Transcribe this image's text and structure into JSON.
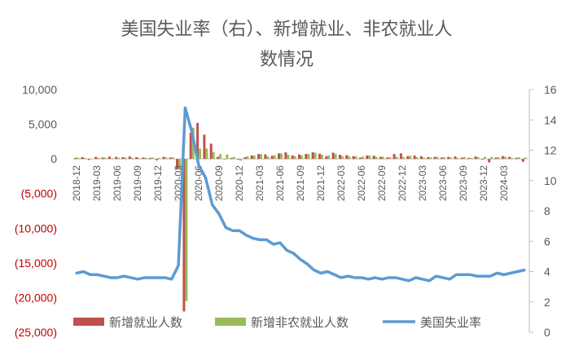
{
  "chart_data": {
    "type": "bar",
    "title": [
      "美国失业率（右）、新增就业、非农就业人",
      "数情况"
    ],
    "left_axis": {
      "ticks": [
        {
          "value": 10000,
          "label": "10,000",
          "color": "#595959"
        },
        {
          "value": 5000,
          "label": "5,000",
          "color": "#595959"
        },
        {
          "value": 0,
          "label": "0",
          "color": "#595959"
        },
        {
          "value": -5000,
          "label": "(5,000)",
          "color": "#c00000"
        },
        {
          "value": -10000,
          "label": "(10,000)",
          "color": "#c00000"
        },
        {
          "value": -15000,
          "label": "(15,000)",
          "color": "#c00000"
        },
        {
          "value": -20000,
          "label": "(20,000)",
          "color": "#c00000"
        },
        {
          "value": -25000,
          "label": "(25,000)",
          "color": "#c00000"
        }
      ],
      "ylim": [
        -25000,
        10000
      ]
    },
    "right_axis": {
      "ticks": [
        "0",
        "2",
        "4",
        "6",
        "8",
        "10",
        "12",
        "14",
        "16"
      ],
      "ylim": [
        0,
        16
      ]
    },
    "x_tick_labels": [
      "2018-12",
      "2019-03",
      "2019-06",
      "2019-09",
      "2019-12",
      "2020-03",
      "2020-06",
      "2020-09",
      "2020-12",
      "2021-03",
      "2021-06",
      "2021-09",
      "2021-12",
      "2022-03",
      "2022-06",
      "2022-09",
      "2022-12",
      "2023-03",
      "2023-06",
      "2023-09",
      "2023-12",
      "2024-03"
    ],
    "months": [
      "2018-12",
      "2019-01",
      "2019-02",
      "2019-03",
      "2019-04",
      "2019-05",
      "2019-06",
      "2019-07",
      "2019-08",
      "2019-09",
      "2019-10",
      "2019-11",
      "2019-12",
      "2020-01",
      "2020-02",
      "2020-03",
      "2020-04",
      "2020-05",
      "2020-06",
      "2020-07",
      "2020-08",
      "2020-09",
      "2020-10",
      "2020-11",
      "2020-12",
      "2021-01",
      "2021-02",
      "2021-03",
      "2021-04",
      "2021-05",
      "2021-06",
      "2021-07",
      "2021-08",
      "2021-09",
      "2021-10",
      "2021-11",
      "2021-12",
      "2022-01",
      "2022-02",
      "2022-03",
      "2022-04",
      "2022-05",
      "2022-06",
      "2022-07",
      "2022-08",
      "2022-09",
      "2022-10",
      "2022-11",
      "2022-12",
      "2023-01",
      "2023-02",
      "2023-03",
      "2023-04",
      "2023-05",
      "2023-06",
      "2023-07",
      "2023-08",
      "2023-09",
      "2023-10",
      "2023-11",
      "2023-12",
      "2024-01",
      "2024-02",
      "2024-03",
      "2024-04",
      "2024-05",
      "2024-06"
    ],
    "series": [
      {
        "name": "新增就业人数",
        "color": "#c0504d",
        "axis": "left",
        "values": [
          150,
          250,
          -150,
          300,
          200,
          350,
          300,
          250,
          350,
          250,
          200,
          150,
          -200,
          300,
          200,
          -1500,
          -22000,
          3800,
          5200,
          3500,
          2200,
          300,
          -50,
          150,
          -100,
          250,
          500,
          700,
          650,
          450,
          800,
          950,
          500,
          650,
          700,
          950,
          750,
          400,
          900,
          600,
          550,
          400,
          200,
          500,
          450,
          300,
          200,
          700,
          800,
          400,
          500,
          400,
          250,
          300,
          200,
          300,
          350,
          200,
          150,
          350,
          -100,
          -500,
          200,
          400,
          300,
          150,
          -400
        ]
      },
      {
        "name": "新增非农就业人数",
        "color": "#9bbb59",
        "axis": "left",
        "values": [
          200,
          150,
          50,
          150,
          200,
          100,
          150,
          200,
          150,
          150,
          150,
          200,
          150,
          200,
          250,
          -1500,
          -20500,
          4500,
          1500,
          1500,
          1000,
          700,
          650,
          300,
          -250,
          400,
          500,
          700,
          350,
          550,
          800,
          600,
          400,
          500,
          700,
          900,
          600,
          500,
          700,
          400,
          350,
          400,
          350,
          500,
          300,
          300,
          250,
          300,
          250,
          450,
          250,
          200,
          250,
          300,
          250,
          200,
          150,
          250,
          150,
          250,
          300,
          300,
          250,
          300,
          150,
          250,
          200
        ]
      },
      {
        "name": "美国失业率",
        "color": "#5b9bd5",
        "axis": "right",
        "values": [
          3.9,
          4.0,
          3.8,
          3.8,
          3.7,
          3.6,
          3.6,
          3.7,
          3.6,
          3.5,
          3.6,
          3.6,
          3.6,
          3.6,
          3.5,
          4.4,
          14.8,
          13.2,
          11.0,
          10.2,
          8.4,
          7.8,
          6.9,
          6.7,
          6.7,
          6.4,
          6.2,
          6.1,
          6.1,
          5.8,
          5.9,
          5.4,
          5.2,
          4.8,
          4.5,
          4.1,
          3.9,
          4.0,
          3.8,
          3.6,
          3.7,
          3.6,
          3.6,
          3.5,
          3.6,
          3.5,
          3.6,
          3.6,
          3.5,
          3.4,
          3.6,
          3.5,
          3.4,
          3.7,
          3.6,
          3.5,
          3.8,
          3.8,
          3.8,
          3.7,
          3.7,
          3.7,
          3.9,
          3.8,
          3.9,
          4.0,
          4.1
        ]
      }
    ],
    "legend_position": "bottom"
  }
}
